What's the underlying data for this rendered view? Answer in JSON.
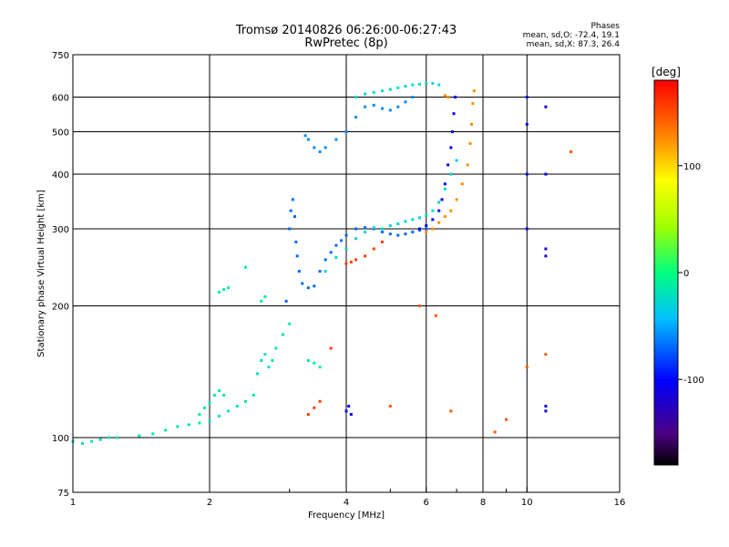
{
  "header": {
    "title_line1": "Tromsø 20140826 06:26:00-06:27:43",
    "title_line2": "RwPretec (8p)",
    "phases_label": "Phases",
    "phases_o": "mean, sd,O: -72.4, 19.1",
    "phases_x": "mean, sd,X:  87.3, 26.4"
  },
  "chart_data": {
    "type": "scatter",
    "title": "Tromsø 20140826 06:26:00-06:27:43",
    "subtitle": "RwPretec (8p)",
    "xlabel": "Frequency [MHz]",
    "ylabel": "Stationary phase Virtual Height [km]",
    "xscale": "log",
    "yscale": "log",
    "xlim": [
      1,
      16
    ],
    "ylim": [
      75,
      750
    ],
    "xticks": [
      1,
      2,
      4,
      6,
      8,
      10,
      16
    ],
    "xtick_labels": [
      "1",
      "2",
      "4",
      "6",
      "8",
      "10",
      "16"
    ],
    "x_minor_ticks": [
      3,
      5,
      7,
      9
    ],
    "yticks": [
      75,
      100,
      200,
      300,
      400,
      500,
      600,
      750
    ],
    "ytick_labels": [
      "75",
      "100",
      "200",
      "300",
      "400",
      "500",
      "600",
      "750"
    ],
    "grid": true,
    "colorbar": {
      "label": "[deg]",
      "range": [
        -180,
        180
      ],
      "ticks": [
        100,
        0,
        -100
      ],
      "tick_labels": [
        "100",
        "0",
        "-100"
      ]
    },
    "series": [
      {
        "color_phase": -20,
        "points": [
          [
            1.0,
            98
          ],
          [
            1.05,
            97
          ],
          [
            1.1,
            98
          ],
          [
            1.15,
            99
          ],
          [
            1.2,
            100
          ],
          [
            1.25,
            100
          ],
          [
            1.4,
            101
          ],
          [
            1.5,
            102
          ],
          [
            1.6,
            104
          ],
          [
            1.7,
            106
          ],
          [
            1.8,
            107
          ],
          [
            1.9,
            108
          ],
          [
            2.0,
            109
          ],
          [
            2.1,
            112
          ],
          [
            2.2,
            115
          ],
          [
            2.3,
            118
          ],
          [
            2.4,
            121
          ],
          [
            2.5,
            125
          ],
          [
            2.55,
            140
          ],
          [
            2.6,
            150
          ],
          [
            2.65,
            155
          ],
          [
            2.7,
            145
          ],
          [
            2.75,
            150
          ],
          [
            2.8,
            160
          ],
          [
            2.9,
            172
          ],
          [
            3.0,
            182
          ]
        ]
      },
      {
        "color_phase": -15,
        "points": [
          [
            2.05,
            125
          ],
          [
            2.1,
            128
          ],
          [
            2.15,
            125
          ],
          [
            2.0,
            120
          ],
          [
            1.95,
            117
          ],
          [
            1.9,
            113
          ],
          [
            2.1,
            215
          ],
          [
            2.15,
            218
          ],
          [
            2.2,
            220
          ],
          [
            2.4,
            245
          ],
          [
            2.6,
            205
          ],
          [
            2.65,
            210
          ],
          [
            3.3,
            150
          ],
          [
            3.4,
            148
          ],
          [
            3.5,
            145
          ]
        ]
      },
      {
        "color_phase": -70,
        "points": [
          [
            2.95,
            205
          ],
          [
            3.0,
            300
          ],
          [
            3.02,
            330
          ],
          [
            3.05,
            350
          ],
          [
            3.08,
            320
          ],
          [
            3.1,
            280
          ],
          [
            3.12,
            260
          ],
          [
            3.15,
            240
          ],
          [
            3.2,
            225
          ],
          [
            3.3,
            220
          ],
          [
            3.4,
            222
          ],
          [
            3.5,
            240
          ],
          [
            3.6,
            255
          ],
          [
            3.7,
            265
          ],
          [
            3.8,
            275
          ],
          [
            3.9,
            282
          ],
          [
            4.0,
            290
          ],
          [
            4.2,
            300
          ],
          [
            4.4,
            302
          ],
          [
            4.6,
            300
          ],
          [
            4.8,
            295
          ],
          [
            5.0,
            292
          ],
          [
            5.2,
            290
          ],
          [
            5.4,
            292
          ],
          [
            5.6,
            295
          ],
          [
            5.8,
            298
          ],
          [
            6.0,
            300
          ]
        ]
      },
      {
        "color_phase": -30,
        "points": [
          [
            3.6,
            240
          ],
          [
            3.8,
            258
          ],
          [
            4.0,
            270
          ],
          [
            4.2,
            285
          ],
          [
            4.4,
            295
          ],
          [
            4.6,
            302
          ],
          [
            4.8,
            300
          ],
          [
            5.0,
            305
          ],
          [
            5.2,
            308
          ],
          [
            5.4,
            312
          ],
          [
            5.6,
            315
          ],
          [
            5.8,
            318
          ],
          [
            6.0,
            322
          ],
          [
            6.2,
            330
          ],
          [
            6.4,
            345
          ],
          [
            6.6,
            370
          ],
          [
            6.8,
            400
          ],
          [
            7.0,
            430
          ]
        ]
      },
      {
        "color_phase": -100,
        "points": [
          [
            5.8,
            300
          ],
          [
            6.0,
            305
          ],
          [
            6.2,
            315
          ],
          [
            6.4,
            330
          ],
          [
            6.5,
            350
          ],
          [
            6.6,
            380
          ],
          [
            6.7,
            420
          ],
          [
            6.8,
            460
          ],
          [
            6.85,
            500
          ],
          [
            6.9,
            550
          ],
          [
            6.95,
            600
          ],
          [
            4.0,
            115
          ],
          [
            4.05,
            118
          ],
          [
            4.1,
            113
          ]
        ]
      },
      {
        "color_phase": 130,
        "points": [
          [
            6.0,
            295
          ],
          [
            6.2,
            300
          ],
          [
            6.4,
            310
          ],
          [
            6.6,
            320
          ],
          [
            6.8,
            330
          ],
          [
            7.0,
            350
          ],
          [
            7.2,
            380
          ],
          [
            7.4,
            420
          ],
          [
            7.5,
            470
          ],
          [
            7.55,
            520
          ],
          [
            7.6,
            580
          ],
          [
            7.65,
            620
          ],
          [
            6.6,
            605
          ],
          [
            6.7,
            600
          ]
        ]
      },
      {
        "color_phase": -60,
        "points": [
          [
            3.25,
            490
          ],
          [
            3.3,
            480
          ],
          [
            3.4,
            460
          ],
          [
            3.5,
            450
          ],
          [
            3.6,
            460
          ],
          [
            3.8,
            480
          ],
          [
            4.0,
            500
          ],
          [
            4.2,
            540
          ],
          [
            4.4,
            570
          ],
          [
            4.6,
            575
          ],
          [
            4.8,
            565
          ],
          [
            5.0,
            560
          ],
          [
            5.2,
            570
          ],
          [
            5.4,
            585
          ],
          [
            5.6,
            600
          ]
        ]
      },
      {
        "color_phase": -25,
        "points": [
          [
            4.2,
            600
          ],
          [
            4.4,
            610
          ],
          [
            4.6,
            615
          ],
          [
            4.8,
            620
          ],
          [
            5.0,
            625
          ],
          [
            5.2,
            630
          ],
          [
            5.4,
            635
          ],
          [
            5.6,
            640
          ],
          [
            5.8,
            642
          ],
          [
            6.0,
            645
          ],
          [
            6.2,
            645
          ],
          [
            6.4,
            640
          ]
        ]
      },
      {
        "color_phase": 160,
        "points": [
          [
            4.0,
            250
          ],
          [
            4.1,
            252
          ],
          [
            4.2,
            255
          ],
          [
            4.4,
            260
          ],
          [
            4.6,
            270
          ],
          [
            4.8,
            280
          ],
          [
            3.3,
            113
          ],
          [
            3.4,
            117
          ],
          [
            3.5,
            121
          ],
          [
            3.7,
            160
          ]
        ]
      },
      {
        "color_phase": -110,
        "points": [
          [
            10.0,
            600
          ],
          [
            10.0,
            520
          ],
          [
            10.0,
            400
          ],
          [
            10.0,
            300
          ],
          [
            11.0,
            570
          ],
          [
            11.0,
            400
          ],
          [
            11.0,
            270
          ],
          [
            11.0,
            260
          ],
          [
            11.0,
            115
          ],
          [
            11.0,
            118
          ]
        ]
      },
      {
        "color_phase": 150,
        "points": [
          [
            12.5,
            450
          ],
          [
            11.0,
            155
          ],
          [
            10.0,
            145
          ],
          [
            9.0,
            110
          ],
          [
            8.5,
            103
          ],
          [
            6.8,
            115
          ],
          [
            5.0,
            118
          ],
          [
            5.8,
            200
          ],
          [
            6.3,
            190
          ]
        ]
      }
    ]
  },
  "colors": {
    "background": "#ffffff",
    "grid": "#000000"
  }
}
